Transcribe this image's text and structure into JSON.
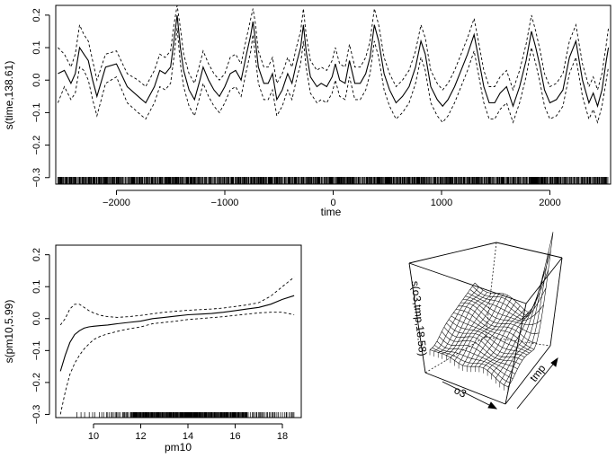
{
  "chart_data": [
    {
      "type": "line",
      "panel": "top",
      "xlabel": "time",
      "ylabel": "s(time,138.61)",
      "xlim": [
        -2560,
        2560
      ],
      "ylim": [
        -0.32,
        0.23
      ],
      "xticks": [
        -2000,
        -1000,
        0,
        1000,
        2000
      ],
      "xtick_labels": [
        "−2000",
        "−1000",
        "0",
        "1000",
        "2000"
      ],
      "yticks": [
        -0.3,
        -0.2,
        -0.1,
        0.0,
        0.1,
        0.2
      ],
      "ytick_labels": [
        "−0.3",
        "−0.2",
        "−0.1",
        "0.0",
        "0.1",
        "0.2"
      ],
      "series": [
        {
          "name": "estimate",
          "style": "solid",
          "x": [
            -2540,
            -2480,
            -2420,
            -2380,
            -2340,
            -2300,
            -2260,
            -2220,
            -2180,
            -2100,
            -2000,
            -1900,
            -1800,
            -1730,
            -1650,
            -1600,
            -1550,
            -1500,
            -1470,
            -1440,
            -1410,
            -1380,
            -1330,
            -1280,
            -1230,
            -1200,
            -1150,
            -1100,
            -1050,
            -1000,
            -950,
            -900,
            -850,
            -800,
            -760,
            -740,
            -720,
            -690,
            -640,
            -600,
            -560,
            -520,
            -470,
            -420,
            -380,
            -340,
            -300,
            -275,
            -250,
            -210,
            -150,
            -110,
            -60,
            -10,
            20,
            60,
            110,
            150,
            200,
            250,
            300,
            340,
            380,
            420,
            470,
            520,
            580,
            640,
            700,
            760,
            810,
            850,
            900,
            960,
            1010,
            1060,
            1120,
            1180,
            1240,
            1300,
            1340,
            1390,
            1440,
            1490,
            1540,
            1600,
            1660,
            1720,
            1780,
            1830,
            1870,
            1910,
            1950,
            2000,
            2060,
            2120,
            2180,
            2240,
            2300,
            2360,
            2400,
            2440,
            2480,
            2520,
            2540
          ],
          "y": [
            0.02,
            0.03,
            -0.01,
            0.02,
            0.1,
            0.08,
            0.06,
            0.0,
            -0.05,
            0.04,
            0.05,
            -0.02,
            -0.05,
            -0.07,
            -0.02,
            0.03,
            0.02,
            0.04,
            0.12,
            0.2,
            0.1,
            0.03,
            -0.03,
            -0.06,
            0.0,
            0.04,
            0.0,
            -0.03,
            -0.05,
            -0.02,
            0.02,
            0.03,
            0.0,
            0.08,
            0.14,
            0.18,
            0.13,
            0.04,
            -0.01,
            -0.01,
            0.02,
            -0.06,
            -0.03,
            0.02,
            -0.01,
            0.05,
            0.1,
            0.17,
            0.09,
            0.01,
            -0.02,
            -0.01,
            -0.02,
            0.01,
            0.05,
            0.0,
            -0.01,
            0.06,
            -0.01,
            -0.01,
            0.02,
            0.07,
            0.17,
            0.12,
            0.02,
            -0.03,
            -0.07,
            -0.05,
            -0.02,
            0.04,
            0.12,
            0.08,
            -0.02,
            -0.06,
            -0.08,
            -0.06,
            -0.02,
            0.03,
            0.08,
            0.14,
            0.07,
            -0.02,
            -0.07,
            -0.07,
            -0.04,
            -0.02,
            -0.08,
            -0.02,
            0.06,
            0.15,
            0.1,
            0.04,
            -0.03,
            -0.07,
            -0.06,
            -0.03,
            0.07,
            0.12,
            0.0,
            -0.07,
            -0.04,
            -0.08,
            -0.03,
            0.06,
            0.1
          ]
        },
        {
          "name": "upper band",
          "style": "dashed",
          "x": [
            -2540,
            -2480,
            -2420,
            -2380,
            -2340,
            -2300,
            -2260,
            -2220,
            -2180,
            -2100,
            -2000,
            -1900,
            -1800,
            -1730,
            -1650,
            -1600,
            -1550,
            -1500,
            -1470,
            -1440,
            -1410,
            -1380,
            -1330,
            -1280,
            -1230,
            -1200,
            -1150,
            -1100,
            -1050,
            -1000,
            -950,
            -900,
            -850,
            -800,
            -760,
            -740,
            -720,
            -690,
            -640,
            -600,
            -560,
            -520,
            -470,
            -420,
            -380,
            -340,
            -300,
            -275,
            -250,
            -210,
            -150,
            -110,
            -60,
            -10,
            20,
            60,
            110,
            150,
            200,
            250,
            300,
            340,
            380,
            420,
            470,
            520,
            580,
            640,
            700,
            760,
            810,
            850,
            900,
            960,
            1010,
            1060,
            1120,
            1180,
            1240,
            1300,
            1340,
            1390,
            1440,
            1490,
            1540,
            1600,
            1660,
            1720,
            1780,
            1830,
            1870,
            1910,
            1950,
            2000,
            2060,
            2120,
            2180,
            2240,
            2300,
            2360,
            2400,
            2440,
            2480,
            2520,
            2540
          ],
          "y": [
            0.1,
            0.08,
            0.04,
            0.08,
            0.17,
            0.14,
            0.12,
            0.06,
            0.0,
            0.08,
            0.09,
            0.02,
            0.0,
            -0.02,
            0.03,
            0.08,
            0.07,
            0.09,
            0.17,
            0.23,
            0.16,
            0.08,
            0.02,
            -0.01,
            0.05,
            0.09,
            0.05,
            0.02,
            0.0,
            0.02,
            0.07,
            0.08,
            0.05,
            0.13,
            0.19,
            0.22,
            0.18,
            0.09,
            0.04,
            0.04,
            0.07,
            -0.01,
            0.02,
            0.07,
            0.04,
            0.1,
            0.15,
            0.22,
            0.14,
            0.06,
            0.03,
            0.04,
            0.03,
            0.06,
            0.1,
            0.05,
            0.04,
            0.11,
            0.04,
            0.04,
            0.07,
            0.12,
            0.22,
            0.17,
            0.07,
            0.02,
            -0.02,
            0.0,
            0.03,
            0.09,
            0.17,
            0.13,
            0.03,
            -0.01,
            -0.03,
            -0.01,
            0.03,
            0.08,
            0.13,
            0.19,
            0.12,
            0.03,
            -0.02,
            -0.02,
            0.01,
            0.03,
            -0.03,
            0.03,
            0.11,
            0.2,
            0.15,
            0.09,
            0.02,
            -0.02,
            -0.01,
            0.02,
            0.12,
            0.17,
            0.05,
            -0.02,
            0.01,
            -0.03,
            0.02,
            0.11,
            0.16
          ]
        },
        {
          "name": "lower band",
          "style": "dashed",
          "x": [
            -2540,
            -2480,
            -2420,
            -2380,
            -2340,
            -2300,
            -2260,
            -2220,
            -2180,
            -2100,
            -2000,
            -1900,
            -1800,
            -1730,
            -1650,
            -1600,
            -1550,
            -1500,
            -1470,
            -1440,
            -1410,
            -1380,
            -1330,
            -1280,
            -1230,
            -1200,
            -1150,
            -1100,
            -1050,
            -1000,
            -950,
            -900,
            -850,
            -800,
            -760,
            -740,
            -720,
            -690,
            -640,
            -600,
            -560,
            -520,
            -470,
            -420,
            -380,
            -340,
            -300,
            -275,
            -250,
            -210,
            -150,
            -110,
            -60,
            -10,
            20,
            60,
            110,
            150,
            200,
            250,
            300,
            340,
            380,
            420,
            470,
            520,
            580,
            640,
            700,
            760,
            810,
            850,
            900,
            960,
            1010,
            1060,
            1120,
            1180,
            1240,
            1300,
            1340,
            1390,
            1440,
            1490,
            1540,
            1600,
            1660,
            1720,
            1780,
            1830,
            1870,
            1910,
            1950,
            2000,
            2060,
            2120,
            2180,
            2240,
            2300,
            2360,
            2400,
            2440,
            2480,
            2520,
            2540
          ],
          "y": [
            -0.07,
            -0.02,
            -0.06,
            -0.04,
            0.04,
            0.03,
            0.0,
            -0.06,
            -0.11,
            -0.01,
            0.01,
            -0.07,
            -0.1,
            -0.12,
            -0.07,
            -0.02,
            -0.03,
            -0.01,
            0.07,
            0.16,
            0.05,
            -0.02,
            -0.08,
            -0.11,
            -0.05,
            -0.01,
            -0.05,
            -0.08,
            -0.1,
            -0.07,
            -0.03,
            -0.02,
            -0.05,
            0.03,
            0.09,
            0.14,
            0.08,
            -0.01,
            -0.06,
            -0.06,
            -0.03,
            -0.11,
            -0.08,
            -0.03,
            -0.06,
            0.0,
            0.05,
            0.12,
            0.04,
            -0.04,
            -0.07,
            -0.06,
            -0.07,
            -0.04,
            0.0,
            -0.05,
            -0.06,
            0.01,
            -0.06,
            -0.06,
            -0.03,
            0.02,
            0.12,
            0.07,
            -0.03,
            -0.08,
            -0.12,
            -0.1,
            -0.07,
            -0.01,
            0.07,
            0.03,
            -0.07,
            -0.11,
            -0.13,
            -0.11,
            -0.07,
            -0.02,
            0.03,
            0.09,
            0.02,
            -0.07,
            -0.12,
            -0.12,
            -0.09,
            -0.07,
            -0.13,
            -0.07,
            0.01,
            0.1,
            0.05,
            -0.01,
            -0.08,
            -0.12,
            -0.11,
            -0.08,
            0.02,
            0.07,
            -0.05,
            -0.12,
            -0.09,
            -0.13,
            -0.08,
            0.0,
            0.04
          ]
        }
      ],
      "rug": "dense tick marks along the x-axis at y = −0.32"
    },
    {
      "type": "line",
      "panel": "bottom-left",
      "xlabel": "pm10",
      "ylabel": "s(pm10,5.99)",
      "xlim": [
        8.4,
        18.8
      ],
      "ylim": [
        -0.31,
        0.23
      ],
      "xticks": [
        10,
        12,
        14,
        16,
        18
      ],
      "xtick_labels": [
        "10",
        "12",
        "14",
        "16",
        "18"
      ],
      "yticks": [
        -0.3,
        -0.2,
        -0.1,
        0.0,
        0.1,
        0.2
      ],
      "ytick_labels": [
        "−0.3",
        "−0.2",
        "−0.1",
        "0.0",
        "0.1",
        "0.2"
      ],
      "series": [
        {
          "name": "estimate",
          "style": "solid",
          "x": [
            8.6,
            8.8,
            9.0,
            9.2,
            9.4,
            9.6,
            9.8,
            10.0,
            10.3,
            10.6,
            11.0,
            11.5,
            12.0,
            12.5,
            13.0,
            13.5,
            14.0,
            14.5,
            15.0,
            15.5,
            16.0,
            16.5,
            17.0,
            17.5,
            18.0,
            18.5
          ],
          "y": [
            -0.165,
            -0.115,
            -0.075,
            -0.05,
            -0.038,
            -0.03,
            -0.026,
            -0.024,
            -0.022,
            -0.02,
            -0.016,
            -0.012,
            -0.008,
            0.0,
            0.004,
            0.008,
            0.012,
            0.014,
            0.016,
            0.02,
            0.025,
            0.03,
            0.035,
            0.045,
            0.06,
            0.072
          ]
        },
        {
          "name": "upper band",
          "style": "dashed",
          "x": [
            8.6,
            8.8,
            9.0,
            9.2,
            9.4,
            9.6,
            9.8,
            10.0,
            10.3,
            10.6,
            11.0,
            11.5,
            12.0,
            12.5,
            13.0,
            13.5,
            14.0,
            14.5,
            15.0,
            15.5,
            16.0,
            16.5,
            17.0,
            17.5,
            18.0,
            18.5
          ],
          "y": [
            -0.02,
            0.0,
            0.03,
            0.045,
            0.045,
            0.035,
            0.025,
            0.018,
            0.01,
            0.006,
            0.004,
            0.006,
            0.01,
            0.015,
            0.02,
            0.023,
            0.026,
            0.028,
            0.03,
            0.033,
            0.038,
            0.043,
            0.05,
            0.07,
            0.1,
            0.13
          ]
        },
        {
          "name": "lower band",
          "style": "dashed",
          "x": [
            8.6,
            8.8,
            9.0,
            9.2,
            9.4,
            9.6,
            9.8,
            10.0,
            10.3,
            10.6,
            11.0,
            11.5,
            12.0,
            12.5,
            13.0,
            13.5,
            14.0,
            14.5,
            15.0,
            15.5,
            16.0,
            16.5,
            17.0,
            17.5,
            18.0,
            18.5
          ],
          "y": [
            -0.3,
            -0.23,
            -0.175,
            -0.14,
            -0.115,
            -0.095,
            -0.08,
            -0.066,
            -0.055,
            -0.048,
            -0.04,
            -0.032,
            -0.026,
            -0.016,
            -0.012,
            -0.008,
            -0.003,
            0.0,
            0.003,
            0.006,
            0.01,
            0.014,
            0.018,
            0.02,
            0.02,
            0.012
          ]
        }
      ],
      "rug": "dense tick marks along the x-axis between pm10 9.3 and 18.5"
    },
    {
      "type": "surface3d",
      "panel": "bottom-right",
      "xlabel": "o3",
      "ylabel": "tmp",
      "zlabel": "s(o3,tmp,18.58)"
    }
  ]
}
